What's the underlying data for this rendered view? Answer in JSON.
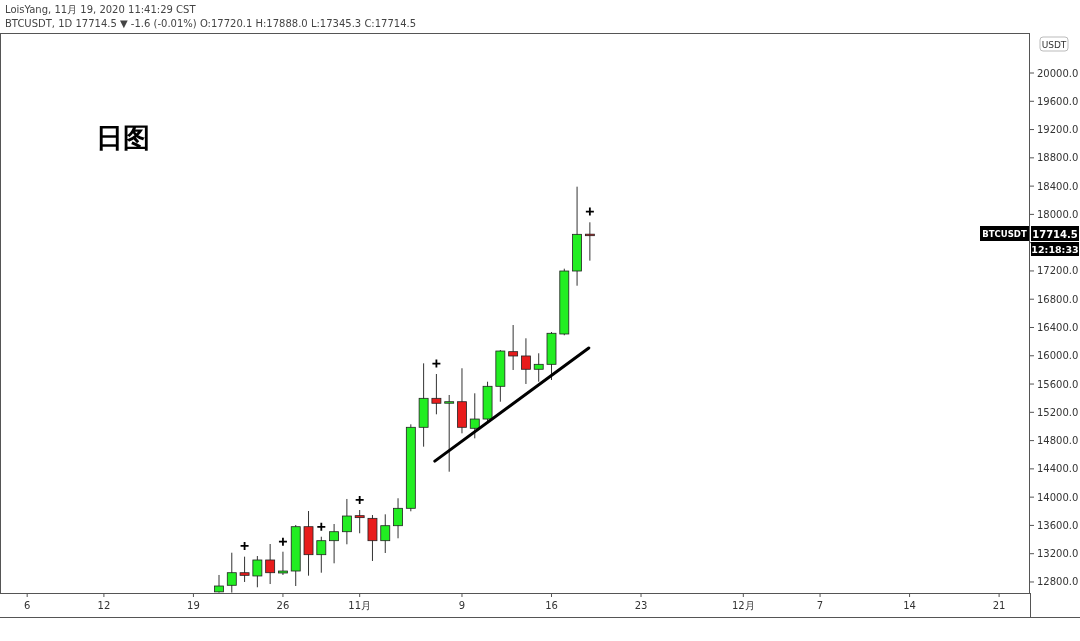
{
  "chart_data": {
    "type": "candlestick",
    "annotations": [
      "LoisYang, 11月 19, 2020 11:41:29 CST",
      "BTCUSDT, 1D 17714.5 ▼ -1.6 (-0.01%) O:17720.1 H:17888.0 L:17345.3 C:17714.5",
      "日图",
      "BTCUSDT",
      "17714.5",
      "12:18:33",
      "USDT"
    ],
    "xlim": [
      "2020-10-03T21:00",
      "2020-12-23T10:00"
    ],
    "xticks": [
      {
        "value": "2020-10-06",
        "label": "6"
      },
      {
        "value": "2020-10-12",
        "label": "12"
      },
      {
        "value": "2020-10-19",
        "label": "19"
      },
      {
        "value": "2020-10-26",
        "label": "26"
      },
      {
        "value": "2020-11-01",
        "label": "11月"
      },
      {
        "value": "2020-11-09",
        "label": "9"
      },
      {
        "value": "2020-11-16",
        "label": "16"
      },
      {
        "value": "2020-11-23",
        "label": "23"
      },
      {
        "value": "2020-12-01",
        "label": "12月"
      },
      {
        "value": "2020-12-07",
        "label": "7"
      },
      {
        "value": "2020-12-14",
        "label": "14"
      },
      {
        "value": "2020-12-21",
        "label": "21"
      }
    ],
    "ylim": [
      12644,
      20566
    ],
    "yticks": [
      {
        "value": 12800,
        "label": "12800.0"
      },
      {
        "value": 13200,
        "label": "13200.0"
      },
      {
        "value": 13600,
        "label": "13600.0"
      },
      {
        "value": 14000,
        "label": "14000.0"
      },
      {
        "value": 14400,
        "label": "14400.0"
      },
      {
        "value": 14800,
        "label": "14800.0"
      },
      {
        "value": 15200,
        "label": "15200.0"
      },
      {
        "value": 15600,
        "label": "15600.0"
      },
      {
        "value": 16000,
        "label": "16000.0"
      },
      {
        "value": 16400,
        "label": "16400.0"
      },
      {
        "value": 16800,
        "label": "16800.0"
      },
      {
        "value": 17200,
        "label": "17200.0"
      },
      {
        "value": 17600,
        "label": null
      },
      {
        "value": 18000,
        "label": "18000.0"
      },
      {
        "value": 18400,
        "label": "18400.0"
      },
      {
        "value": 18800,
        "label": "18800.0"
      },
      {
        "value": 19200,
        "label": "19200.0"
      },
      {
        "value": 19600,
        "label": "19600.0"
      },
      {
        "value": 20000,
        "label": "20000.0"
      }
    ],
    "series": [
      {
        "x": [
          "2020-10-21",
          "2020-10-22",
          "2020-10-23",
          "2020-10-24",
          "2020-10-25",
          "2020-10-26",
          "2020-10-27",
          "2020-10-28",
          "2020-10-29",
          "2020-10-30",
          "2020-10-31",
          "2020-11-01",
          "2020-11-02",
          "2020-11-03",
          "2020-11-04",
          "2020-11-05",
          "2020-11-06",
          "2020-11-07",
          "2020-11-08",
          "2020-11-09",
          "2020-11-10",
          "2020-11-11",
          "2020-11-12",
          "2020-11-13",
          "2020-11-14",
          "2020-11-15",
          "2020-11-16",
          "2020-11-17",
          "2020-11-18",
          "2020-11-19"
        ],
        "ohlc": [
          [
            12660,
            12899,
            12650,
            12743
          ],
          [
            12753,
            13214,
            12650,
            12931
          ],
          [
            12931,
            13158,
            12800,
            12894
          ],
          [
            12885,
            13167,
            12725,
            13111
          ],
          [
            13111,
            13337,
            12771,
            12931
          ],
          [
            12927,
            13228,
            12899,
            12955
          ],
          [
            12955,
            13606,
            12743,
            13582
          ],
          [
            13582,
            13804,
            12889,
            13186
          ],
          [
            13186,
            13440,
            12931,
            13384
          ],
          [
            13384,
            13620,
            13064,
            13511
          ],
          [
            13511,
            13974,
            13333,
            13733
          ],
          [
            13738,
            13818,
            13489,
            13710
          ],
          [
            13700,
            13747,
            13097,
            13384
          ],
          [
            13384,
            13757,
            13210,
            13596
          ],
          [
            13596,
            13984,
            13418,
            13842
          ],
          [
            13842,
            15030,
            13800,
            14988
          ],
          [
            14988,
            15893,
            14714,
            15398
          ],
          [
            15398,
            15742,
            15172,
            15328
          ],
          [
            15332,
            15445,
            14360,
            15350
          ],
          [
            15350,
            15823,
            14903,
            14988
          ],
          [
            14974,
            15469,
            14832,
            15105
          ],
          [
            15105,
            15633,
            15045,
            15568
          ],
          [
            15568,
            16081,
            15350,
            16067
          ],
          [
            16058,
            16435,
            15799,
            15997
          ],
          [
            15997,
            16247,
            15601,
            15809
          ],
          [
            15809,
            16035,
            15633,
            15879
          ],
          [
            15879,
            16336,
            15657,
            16318
          ],
          [
            16308,
            17232,
            16290,
            17199
          ],
          [
            17199,
            18392,
            16991,
            17718
          ],
          [
            17720.1,
            17888.0,
            17345.3,
            17714.5
          ]
        ],
        "colors": [
          "#22ee22",
          "#22ee22",
          "#e81c1c",
          "#22ee22",
          "#e81c1c",
          "#22ee22",
          "#22ee22",
          "#e81c1c",
          "#22ee22",
          "#22ee22",
          "#22ee22",
          "#e81c1c",
          "#e81c1c",
          "#22ee22",
          "#22ee22",
          "#22ee22",
          "#22ee22",
          "#e81c1c",
          "#22ee22",
          "#e81c1c",
          "#22ee22",
          "#22ee22",
          "#22ee22",
          "#e81c1c",
          "#e81c1c",
          "#22ee22",
          "#22ee22",
          "#22ee22",
          "#22ee22",
          "#e81c1c"
        ]
      },
      {
        "type": "scatter",
        "marker": "cross",
        "color": "#000000",
        "x": [
          "2020-10-23",
          "2020-10-26",
          "2020-10-29",
          "2020-11-01",
          "2020-11-07",
          "2020-11-19"
        ],
        "values": [
          13310,
          13370,
          13580,
          13960,
          15890,
          18040
        ]
      },
      {
        "type": "line",
        "color": "#000000",
        "x": [
          "2020-11-06T21:00",
          "2020-11-18T22:00"
        ],
        "values": [
          14510,
          16110
        ]
      }
    ]
  }
}
